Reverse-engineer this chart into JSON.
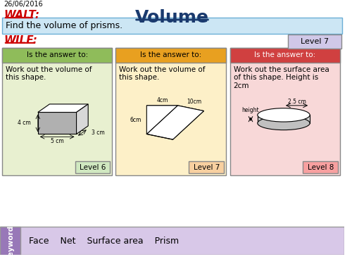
{
  "title": "Volume",
  "date": "26/06/2016",
  "walt_text": "WALT:",
  "walt_content": "Find the volume of prisms.",
  "wilf_text": "WILF:",
  "level7_label": "Level 7",
  "box1_header": "Is the answer to:",
  "box1_content": "Work out the volume of\nthis shape.",
  "box1_level": "Level 6",
  "box2_header": "Is the answer to:",
  "box2_content": "Work out the volume of\nthis shape.",
  "box2_level": "Level 7",
  "box3_header": "Is the answer to:",
  "box3_content": "Work out the surface area\nof this shape. Height is\n2cm",
  "box3_level": "Level 8",
  "keywords_label": "Keywords",
  "keywords": "Face    Net    Surface area    Prism",
  "bg_color": "#ffffff",
  "title_color": "#1a3a6e",
  "walt_color": "#cc0000",
  "wilf_color": "#cc0000",
  "walt_bg": "#cce6f4",
  "walt_border": "#6baed6",
  "box1_header_bg": "#8fbc5a",
  "box1_body_bg": "#e8f0d0",
  "box2_header_bg": "#e8a020",
  "box2_body_bg": "#fdf0c8",
  "box3_header_bg": "#d04040",
  "box3_body_bg": "#f8d8d8",
  "keywords_bg": "#d8c8e8",
  "keywords_side_bg": "#9878b8",
  "level_btn_bg": "#d0e8c0",
  "level7_btn_bg": "#d0c8e8"
}
